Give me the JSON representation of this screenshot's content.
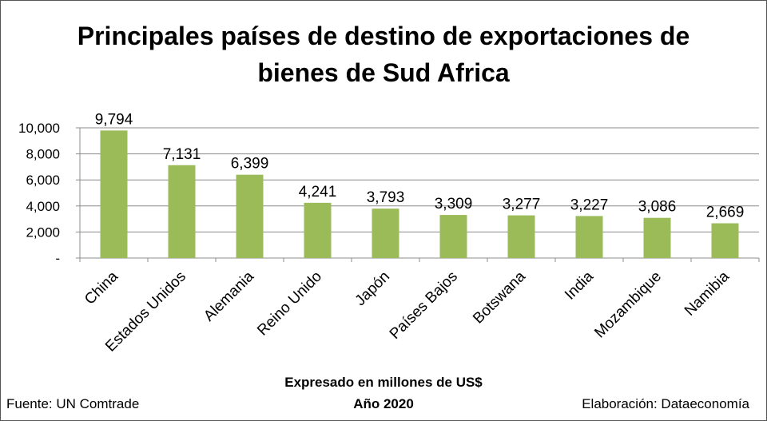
{
  "chart_data": {
    "type": "bar",
    "title": "Principales países de destino de exportaciones de bienes de Sud Africa",
    "categories": [
      "China",
      "Estados Unidos",
      "Alemania",
      "Reino Unido",
      "Japón",
      "Países Bajos",
      "Botswana",
      "India",
      "Mozambique",
      "Namibia"
    ],
    "values": [
      9794,
      7131,
      6399,
      4241,
      3793,
      3309,
      3277,
      3227,
      3086,
      2669
    ],
    "value_labels": [
      "9,794",
      "7,131",
      "6,399",
      "4,241",
      "3,793",
      "3,309",
      "3,277",
      "3,227",
      "3,086",
      "2,669"
    ],
    "ylim": [
      0,
      10000
    ],
    "yticks": [
      0,
      2000,
      4000,
      6000,
      8000,
      10000
    ],
    "ytick_labels": [
      "-",
      "2,000",
      "4,000",
      "6,000",
      "8,000",
      "10,000"
    ],
    "grid": true,
    "legend": "none",
    "bar_color": "#9BBB59",
    "xlabel": "Expresado en millones de US$",
    "subtitle": "Año 2020"
  },
  "footer": {
    "source": "Fuente: UN Comtrade",
    "credit": "Elaboración: Dataeconomía"
  }
}
